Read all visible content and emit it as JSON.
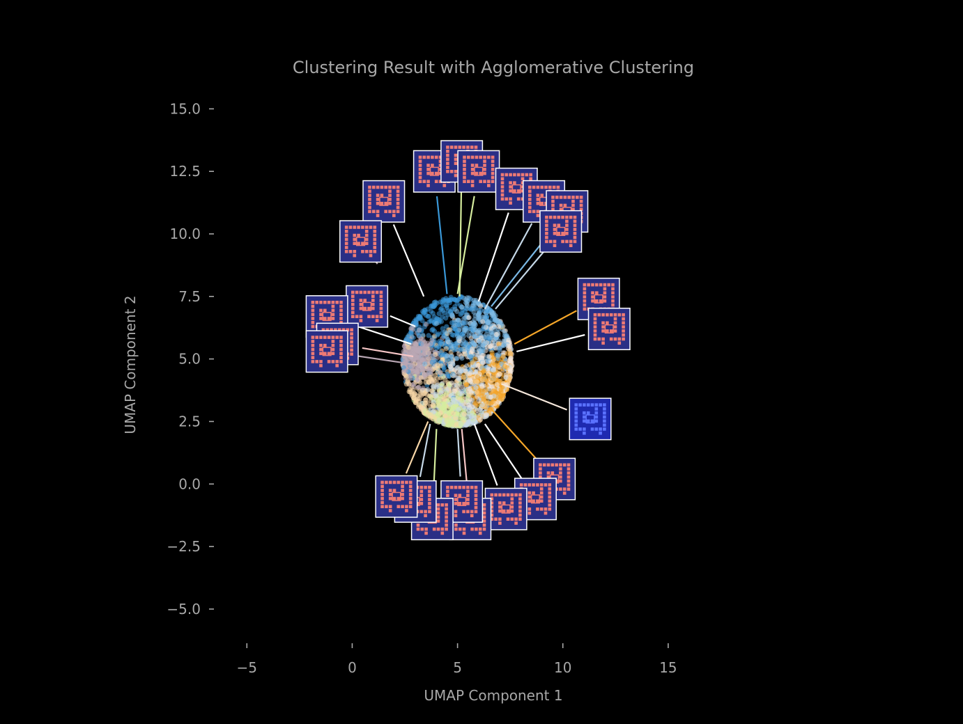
{
  "chart_data": {
    "type": "scatter",
    "title": "Clustering Result with Agglomerative Clustering",
    "xlabel": "UMAP Component 1",
    "ylabel": "UMAP Component 2",
    "xlim": [
      -6.2,
      19.6
    ],
    "ylim": [
      -6.2,
      15.4
    ],
    "xticks": [
      {
        "value": -5,
        "label": "−5"
      },
      {
        "value": 0,
        "label": "0"
      },
      {
        "value": 5,
        "label": "5"
      },
      {
        "value": 10,
        "label": "10"
      },
      {
        "value": 15,
        "label": "15"
      }
    ],
    "yticks": [
      {
        "value": 15,
        "label": "15.0"
      },
      {
        "value": 12.5,
        "label": "12.5"
      },
      {
        "value": 10,
        "label": "10.0"
      },
      {
        "value": 7.5,
        "label": "7.5"
      },
      {
        "value": 5,
        "label": "5.0"
      },
      {
        "value": 2.5,
        "label": "2.5"
      },
      {
        "value": 0,
        "label": "0.0"
      },
      {
        "value": -2.5,
        "label": "−2.5"
      },
      {
        "value": -5,
        "label": "−5.0"
      }
    ],
    "grid": false,
    "background": "#000000",
    "point_cloud": {
      "center": [
        5,
        4.9
      ],
      "radius": 2.6
    },
    "clusters": [
      {
        "color": "#3a98d8",
        "center": [
          4.2,
          6.1
        ],
        "spread": 1.1
      },
      {
        "color": "#7ab8e4",
        "center": [
          6.1,
          6.0
        ],
        "spread": 0.8
      },
      {
        "color": "#f6e8dc",
        "center": [
          6.6,
          4.6
        ],
        "spread": 0.9
      },
      {
        "color": "#f5a629",
        "center": [
          6.7,
          3.9
        ],
        "spread": 0.7
      },
      {
        "color": "#f8d7a8",
        "center": [
          3.8,
          3.8
        ],
        "spread": 1.0
      },
      {
        "color": "#c6d9e8",
        "center": [
          5.4,
          3.3
        ],
        "spread": 0.9
      },
      {
        "color": "#b9a7b4",
        "center": [
          3.1,
          5.0
        ],
        "spread": 0.5
      },
      {
        "color": "#d6ed9e",
        "center": [
          4.6,
          2.8
        ],
        "spread": 0.6
      }
    ],
    "annotations": [
      {
        "anchor": [
          3.4,
          7.5
        ],
        "thumb": [
          1.5,
          11.3
        ],
        "line": "#ffffff",
        "theme": "red"
      },
      {
        "anchor": [
          1.2,
          8.8
        ],
        "thumb": [
          0.4,
          9.7
        ],
        "line": "#b9a7b4",
        "theme": "red"
      },
      {
        "anchor": [
          3.0,
          6.3
        ],
        "thumb": [
          0.7,
          7.1
        ],
        "line": "#ffffff",
        "theme": "red"
      },
      {
        "anchor": [
          2.8,
          5.6
        ],
        "thumb": [
          -1.2,
          6.7
        ],
        "line": "#ffffff",
        "theme": "red"
      },
      {
        "anchor": [
          2.9,
          5.1
        ],
        "thumb": [
          -0.7,
          5.6
        ],
        "line": "#f6c6c6",
        "theme": "red"
      },
      {
        "anchor": [
          2.8,
          4.8
        ],
        "thumb": [
          -1.2,
          5.3
        ],
        "line": "#b9a7b4",
        "theme": "red"
      },
      {
        "anchor": [
          4.5,
          7.6
        ],
        "thumb": [
          3.9,
          12.5
        ],
        "line": "#3a98d8",
        "theme": "red"
      },
      {
        "anchor": [
          5.1,
          7.5
        ],
        "thumb": [
          5.2,
          12.9
        ],
        "line": "#d6ed9e",
        "theme": "red"
      },
      {
        "anchor": [
          5.0,
          7.6
        ],
        "thumb": [
          6.0,
          12.5
        ],
        "line": "#d6ed9e",
        "theme": "red"
      },
      {
        "anchor": [
          6.0,
          7.3
        ],
        "thumb": [
          7.8,
          11.8
        ],
        "line": "#ffffff",
        "theme": "red"
      },
      {
        "anchor": [
          6.3,
          7.0
        ],
        "thumb": [
          9.1,
          11.3
        ],
        "line": "#c6d9e8",
        "theme": "red"
      },
      {
        "anchor": [
          6.6,
          7.1
        ],
        "thumb": [
          10.2,
          10.9
        ],
        "line": "#7ab8e4",
        "theme": "red"
      },
      {
        "anchor": [
          6.8,
          7.0
        ],
        "thumb": [
          9.9,
          10.1
        ],
        "line": "#c6d9e8",
        "theme": "red"
      },
      {
        "anchor": [
          7.7,
          5.6
        ],
        "thumb": [
          11.7,
          7.4
        ],
        "line": "#f5a629",
        "theme": "red"
      },
      {
        "anchor": [
          7.8,
          5.3
        ],
        "thumb": [
          12.2,
          6.2
        ],
        "line": "#ffffff",
        "theme": "red"
      },
      {
        "anchor": [
          7.1,
          4.0
        ],
        "thumb": [
          11.3,
          2.6
        ],
        "line": "#f6e8dc",
        "theme": "blue"
      },
      {
        "anchor": [
          6.6,
          3.0
        ],
        "thumb": [
          9.6,
          0.2
        ],
        "line": "#f5a629",
        "theme": "red"
      },
      {
        "anchor": [
          6.3,
          2.4
        ],
        "thumb": [
          8.7,
          -0.6
        ],
        "line": "#ffffff",
        "theme": "red"
      },
      {
        "anchor": [
          5.8,
          2.4
        ],
        "thumb": [
          7.3,
          -1.0
        ],
        "line": "#ffffff",
        "theme": "red"
      },
      {
        "anchor": [
          5.2,
          2.2
        ],
        "thumb": [
          5.6,
          -1.4
        ],
        "line": "#f6c6c6",
        "theme": "red"
      },
      {
        "anchor": [
          5.0,
          2.2
        ],
        "thumb": [
          5.2,
          -0.7
        ],
        "line": "#c6d9e8",
        "theme": "red"
      },
      {
        "anchor": [
          4.0,
          2.2
        ],
        "thumb": [
          3.8,
          -1.4
        ],
        "line": "#d6ed9e",
        "theme": "red"
      },
      {
        "anchor": [
          3.7,
          2.4
        ],
        "thumb": [
          3.0,
          -0.7
        ],
        "line": "#c6d9e8",
        "theme": "red"
      },
      {
        "anchor": [
          3.6,
          2.5
        ],
        "thumb": [
          2.1,
          -0.5
        ],
        "line": "#f8d7a8",
        "theme": "red"
      }
    ]
  }
}
